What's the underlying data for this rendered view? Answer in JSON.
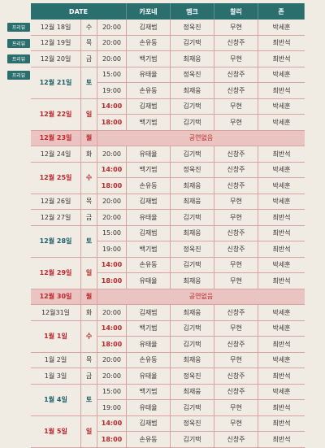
{
  "header": {
    "date": "DATE",
    "roles": [
      "카포네",
      "멤크",
      "찰리",
      "존"
    ]
  },
  "preview_label": "프리뷰",
  "no_show_label": "공연없음",
  "rows": [
    {
      "date": "12월 18일",
      "dow": "수",
      "times": [
        "20:00"
      ],
      "cast": [
        [
          "김재범",
          "정욱진",
          "무현",
          "박세훈"
        ]
      ],
      "preview": true
    },
    {
      "date": "12월 19일",
      "dow": "목",
      "times": [
        "20:00"
      ],
      "cast": [
        [
          "손유동",
          "김기택",
          "신창주",
          "최반석"
        ]
      ],
      "preview": true
    },
    {
      "date": "12월 20일",
      "dow": "금",
      "times": [
        "20:00"
      ],
      "cast": [
        [
          "백기범",
          "최재웅",
          "무현",
          "최반석"
        ]
      ],
      "preview": true
    },
    {
      "date": "12월 21일",
      "dow": "토",
      "times": [
        "15:00",
        "19:00"
      ],
      "cast": [
        [
          "유태율",
          "정욱진",
          "신창주",
          "박세훈"
        ],
        [
          "손유동",
          "최재웅",
          "신창주",
          "최반석"
        ]
      ],
      "preview": true,
      "teal": true
    },
    {
      "date": "12월 22일",
      "dow": "일",
      "times": [
        "14:00",
        "18:00"
      ],
      "cast": [
        [
          "김재범",
          "김기택",
          "무현",
          "박세훈"
        ],
        [
          "백기범",
          "김기택",
          "무현",
          "박세훈"
        ]
      ],
      "red": true
    },
    {
      "date": "12월 23일",
      "dow": "월",
      "none": true
    },
    {
      "date": "12월 24일",
      "dow": "화",
      "times": [
        "20:00"
      ],
      "cast": [
        [
          "유태율",
          "김기택",
          "신창주",
          "최반석"
        ]
      ]
    },
    {
      "date": "12월 25일",
      "dow": "수",
      "times": [
        "14:00",
        "18:00"
      ],
      "cast": [
        [
          "백기범",
          "정욱진",
          "신창주",
          "박세훈"
        ],
        [
          "손유동",
          "최재웅",
          "신창주",
          "박세훈"
        ]
      ],
      "red": true
    },
    {
      "date": "12월 26일",
      "dow": "목",
      "times": [
        "20:00"
      ],
      "cast": [
        [
          "김재범",
          "최재웅",
          "무현",
          "박세훈"
        ]
      ]
    },
    {
      "date": "12월 27일",
      "dow": "금",
      "times": [
        "20:00"
      ],
      "cast": [
        [
          "유태율",
          "김기택",
          "무현",
          "최반석"
        ]
      ]
    },
    {
      "date": "12월 28일",
      "dow": "토",
      "times": [
        "15:00",
        "19:00"
      ],
      "cast": [
        [
          "김재범",
          "최재웅",
          "신창주",
          "최반석"
        ],
        [
          "백기범",
          "정욱진",
          "신창주",
          "최반석"
        ]
      ],
      "teal": true
    },
    {
      "date": "12월 29일",
      "dow": "일",
      "times": [
        "14:00",
        "18:00"
      ],
      "cast": [
        [
          "손유동",
          "김기택",
          "무현",
          "박세훈"
        ],
        [
          "유태율",
          "최재웅",
          "무현",
          "최반석"
        ]
      ],
      "red": true
    },
    {
      "date": "12월 30일",
      "dow": "월",
      "none": true
    },
    {
      "date": "12월31일",
      "dow": "화",
      "times": [
        "20:00"
      ],
      "cast": [
        [
          "김재범",
          "최재웅",
          "신창주",
          "박세훈"
        ]
      ]
    },
    {
      "date": "1월 1일",
      "dow": "수",
      "times": [
        "14:00",
        "18:00"
      ],
      "cast": [
        [
          "백기범",
          "김기택",
          "무현",
          "박세훈"
        ],
        [
          "유태율",
          "김기택",
          "신창주",
          "최반석"
        ]
      ],
      "red": true
    },
    {
      "date": "1월 2일",
      "dow": "목",
      "times": [
        "20:00"
      ],
      "cast": [
        [
          "손유동",
          "최재웅",
          "무현",
          "박세훈"
        ]
      ]
    },
    {
      "date": "1월 3일",
      "dow": "금",
      "times": [
        "20:00"
      ],
      "cast": [
        [
          "유태율",
          "정욱진",
          "신창주",
          "최반석"
        ]
      ]
    },
    {
      "date": "1월 4일",
      "dow": "토",
      "times": [
        "15:00",
        "19:00"
      ],
      "cast": [
        [
          "백기범",
          "최재웅",
          "신창주",
          "박세훈"
        ],
        [
          "유태율",
          "김기택",
          "무현",
          "최반석"
        ]
      ],
      "teal": true
    },
    {
      "date": "1월 5일",
      "dow": "일",
      "times": [
        "14:00",
        "18:00"
      ],
      "cast": [
        [
          "김재범",
          "정욱진",
          "무현",
          "최반석"
        ],
        [
          "손유동",
          "김기택",
          "신창주",
          "최반석"
        ]
      ],
      "red": true
    }
  ]
}
